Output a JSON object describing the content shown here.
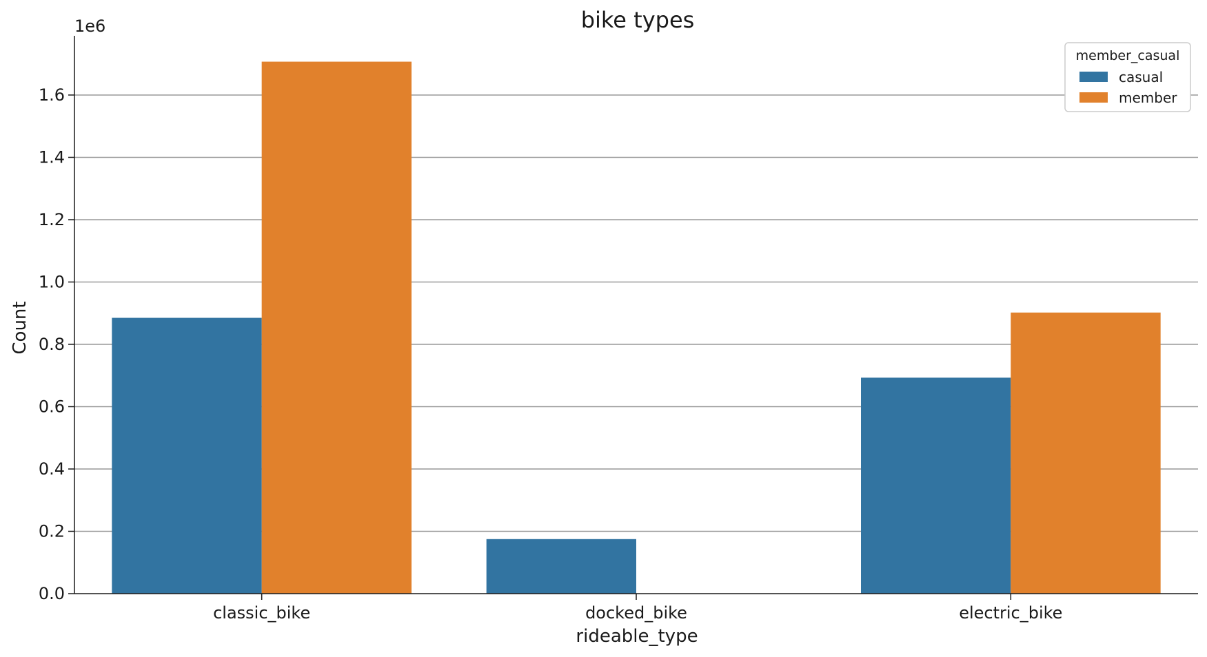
{
  "chart_data": {
    "type": "bar",
    "title": "bike types",
    "xlabel": "rideable_type",
    "ylabel": "Count",
    "y_offset_label": "1e6",
    "categories": [
      "classic_bike",
      "docked_bike",
      "electric_bike"
    ],
    "series": [
      {
        "name": "casual",
        "color": "#3274a1",
        "values": [
          0.885,
          0.175,
          0.693
        ]
      },
      {
        "name": "member",
        "color": "#e1812c",
        "values": [
          1.707,
          0.0,
          0.902
        ]
      }
    ],
    "ylim": [
      0,
      1.79
    ],
    "yticks": [
      0.0,
      0.2,
      0.4,
      0.6,
      0.8,
      1.0,
      1.2,
      1.4,
      1.6
    ],
    "ytick_labels": [
      "0.0",
      "0.2",
      "0.4",
      "0.6",
      "0.8",
      "1.0",
      "1.2",
      "1.4",
      "1.6"
    ],
    "grid": "y",
    "legend": {
      "title": "member_casual",
      "placement": "top-right"
    }
  }
}
